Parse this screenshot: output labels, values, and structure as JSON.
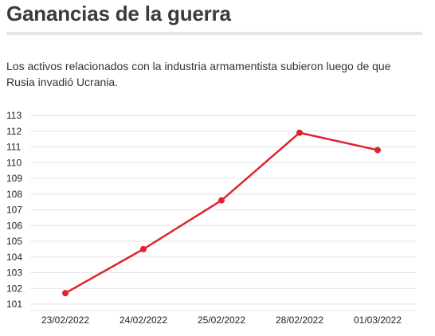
{
  "header": {
    "title": "Ganancias de la guerra",
    "subtitle": "Los activos relacionados con la industria armamentista subieron luego de que Rusia invadió Ucrania."
  },
  "colors": {
    "series": "#e0232e",
    "grid": "#e3e3e3",
    "rule": "#e6e6e6"
  },
  "chart_data": {
    "type": "line",
    "title": "Ganancias de la guerra",
    "subtitle": "Los activos relacionados con la industria armamentista subieron luego de que Rusia invadió Ucrania.",
    "categories": [
      "23/02/2022",
      "24/02/2022",
      "25/02/2022",
      "28/02/2022",
      "01/03/2022"
    ],
    "series": [
      {
        "values": [
          101.7,
          104.5,
          107.6,
          111.9,
          110.8
        ]
      }
    ],
    "yticks": [
      101,
      102,
      103,
      104,
      105,
      106,
      107,
      108,
      109,
      110,
      111,
      112,
      113
    ],
    "ylim": [
      101,
      113
    ],
    "xlabel": "",
    "ylabel": "",
    "grid": true,
    "legend": "none",
    "markers": true
  }
}
